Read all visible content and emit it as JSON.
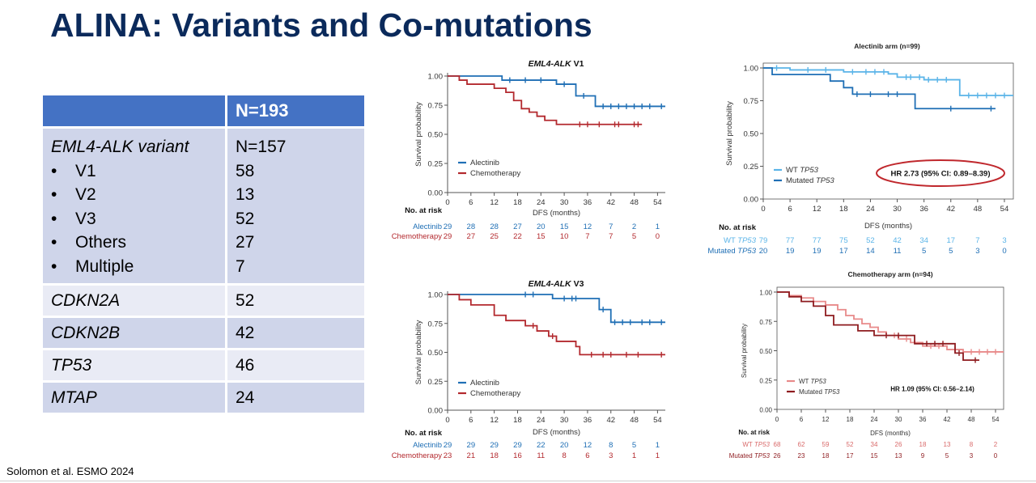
{
  "title": "ALINA: Variants and Co-mutations",
  "citation": "Solomon et al. ESMO 2024",
  "table": {
    "header": "N=193",
    "variant_label": "EML4-ALK variant",
    "variant_value": "N=157",
    "variants": [
      {
        "label": "V1",
        "value": "58"
      },
      {
        "label": "V2",
        "value": "13"
      },
      {
        "label": "V3",
        "value": "52"
      },
      {
        "label": "Others",
        "value": "27"
      },
      {
        "label": "Multiple",
        "value": "7"
      }
    ],
    "rows": [
      {
        "label": "CDKN2A",
        "value": "52"
      },
      {
        "label": "CDKN2B",
        "value": "42"
      },
      {
        "label": "TP53",
        "value": "46"
      },
      {
        "label": "MTAP",
        "value": "24"
      }
    ]
  },
  "colors": {
    "blue": "#1f6fb5",
    "red": "#b3292e",
    "light_blue": "#5ab4e8",
    "dark_red": "#8e1b1f",
    "light_red": "#e88a8a",
    "ellipse": "#c0282d"
  },
  "chart_data": [
    {
      "id": "v1",
      "type": "line",
      "title_italic": "EML4-ALK",
      "title_rest": " V1",
      "xlabel": "DFS (months)",
      "ylabel": "Survival probability",
      "xlim": [
        0,
        56
      ],
      "ylim": [
        0,
        1
      ],
      "xticks": [
        "0",
        "6",
        "12",
        "18",
        "24",
        "30",
        "36",
        "42",
        "48",
        "54"
      ],
      "yticks": [
        "0.00",
        "0.25",
        "0.50",
        "0.75",
        "1.00"
      ],
      "risk_title": "No. at risk",
      "series": [
        {
          "name": "Alectinib",
          "color": "#1f6fb5",
          "steps": [
            [
              0,
              1.0
            ],
            [
              14,
              0.965
            ],
            [
              28,
              0.93
            ],
            [
              33,
              0.83
            ],
            [
              38,
              0.74
            ],
            [
              56,
              0.74
            ]
          ],
          "censor": [
            16,
            20,
            24,
            30,
            35,
            40,
            42,
            44,
            46,
            48,
            50,
            52,
            55
          ],
          "risk_label": "Alectinib",
          "risk": [
            "29",
            "28",
            "28",
            "27",
            "20",
            "15",
            "12",
            "7",
            "2",
            "1"
          ]
        },
        {
          "name": "Chemotherapy",
          "color": "#b3292e",
          "steps": [
            [
              0,
              1.0
            ],
            [
              3,
              0.965
            ],
            [
              5,
              0.93
            ],
            [
              12,
              0.895
            ],
            [
              15,
              0.86
            ],
            [
              17,
              0.79
            ],
            [
              19,
              0.72
            ],
            [
              21,
              0.69
            ],
            [
              23,
              0.655
            ],
            [
              25,
              0.62
            ],
            [
              28,
              0.585
            ],
            [
              50,
              0.585
            ]
          ],
          "censor": [
            34,
            36,
            39,
            43,
            44,
            48,
            49
          ],
          "risk_label": "Chemotherapy",
          "risk": [
            "29",
            "27",
            "25",
            "22",
            "15",
            "10",
            "7",
            "7",
            "5",
            "0"
          ]
        }
      ]
    },
    {
      "id": "v3",
      "type": "line",
      "title_italic": "EML4-ALK",
      "title_rest": " V3",
      "xlabel": "DFS (months)",
      "ylabel": "Survival probability",
      "xlim": [
        0,
        56
      ],
      "ylim": [
        0,
        1
      ],
      "xticks": [
        "0",
        "6",
        "12",
        "18",
        "24",
        "30",
        "36",
        "42",
        "48",
        "54"
      ],
      "yticks": [
        "0.00",
        "0.25",
        "0.50",
        "0.75",
        "1.00"
      ],
      "risk_title": "No. at risk",
      "series": [
        {
          "name": "Alectinib",
          "color": "#1f6fb5",
          "steps": [
            [
              0,
              1.0
            ],
            [
              27,
              0.965
            ],
            [
              39,
              0.87
            ],
            [
              42,
              0.76
            ],
            [
              56,
              0.76
            ]
          ],
          "censor": [
            20,
            22,
            30,
            32,
            33,
            40,
            43,
            45,
            47,
            50,
            52,
            55
          ],
          "risk_label": "Alectinib",
          "risk": [
            "29",
            "29",
            "29",
            "29",
            "22",
            "20",
            "12",
            "8",
            "5",
            "1"
          ]
        },
        {
          "name": "Chemotherapy",
          "color": "#b3292e",
          "steps": [
            [
              0,
              1.0
            ],
            [
              3,
              0.955
            ],
            [
              6,
              0.91
            ],
            [
              12,
              0.82
            ],
            [
              15,
              0.775
            ],
            [
              20,
              0.73
            ],
            [
              23,
              0.685
            ],
            [
              26,
              0.64
            ],
            [
              28,
              0.595
            ],
            [
              33,
              0.55
            ],
            [
              34,
              0.48
            ],
            [
              56,
              0.48
            ]
          ],
          "censor": [
            22,
            27,
            37,
            40,
            42,
            46,
            49,
            55
          ],
          "risk_label": "Chemotherapy",
          "risk": [
            "23",
            "21",
            "18",
            "16",
            "11",
            "8",
            "6",
            "3",
            "1",
            "1"
          ]
        }
      ]
    },
    {
      "id": "alectinib_arm",
      "type": "line",
      "title": "Alectinib arm (n=99)",
      "xlabel": "DFS (months)",
      "ylabel": "Survival probability",
      "xlim": [
        0,
        56
      ],
      "ylim": [
        0,
        1
      ],
      "xticks": [
        "0",
        "6",
        "12",
        "18",
        "24",
        "30",
        "36",
        "42",
        "48",
        "54"
      ],
      "yticks": [
        "0.00",
        "0.25",
        "0.50",
        "0.75",
        "1.00"
      ],
      "annotation": "HR 2.73 (95% CI: 0.89–8.39)",
      "risk_title": "No. at risk",
      "series": [
        {
          "name": "WT TP53",
          "legend_plain": "WT ",
          "legend_italic": "TP53",
          "color": "#5ab4e8",
          "steps": [
            [
              0,
              1.0
            ],
            [
              6,
              0.985
            ],
            [
              18,
              0.97
            ],
            [
              28,
              0.955
            ],
            [
              30,
              0.93
            ],
            [
              36,
              0.91
            ],
            [
              44,
              0.79
            ],
            [
              56,
              0.79
            ]
          ],
          "censor": [
            3,
            10,
            14,
            20,
            23,
            25,
            27,
            32,
            33,
            35,
            37,
            39,
            41,
            46,
            48,
            50,
            52,
            54
          ],
          "risk_label_plain": "WT ",
          "risk_label_italic": "TP53",
          "risk": [
            "79",
            "77",
            "77",
            "75",
            "52",
            "42",
            "34",
            "17",
            "7",
            "3"
          ]
        },
        {
          "name": "Mutated TP53",
          "legend_plain": "Mutated ",
          "legend_italic": "TP53",
          "color": "#1f6fb5",
          "steps": [
            [
              0,
              1.0
            ],
            [
              2,
              0.95
            ],
            [
              15,
              0.9
            ],
            [
              18,
              0.85
            ],
            [
              20,
              0.8
            ],
            [
              34,
              0.69
            ],
            [
              52,
              0.69
            ]
          ],
          "censor": [
            21,
            24,
            28,
            30,
            42,
            51
          ],
          "risk_label_plain": "Mutated ",
          "risk_label_italic": "TP53",
          "risk": [
            "20",
            "19",
            "19",
            "17",
            "14",
            "11",
            "5",
            "5",
            "3",
            "0"
          ]
        }
      ]
    },
    {
      "id": "chemotherapy_arm",
      "type": "line",
      "title": "Chemotherapy arm (n=94)",
      "xlabel": "DFS (months)",
      "ylabel": "Survival probability",
      "xlim": [
        0,
        56
      ],
      "ylim": [
        0,
        1
      ],
      "xticks": [
        "0",
        "6",
        "12",
        "18",
        "24",
        "30",
        "36",
        "42",
        "48",
        "54"
      ],
      "yticks": [
        "0.00",
        "0.25",
        "0.50",
        "0.75",
        "1.00"
      ],
      "annotation": "HR 1.09 (95% CI: 0.56–2.14)",
      "risk_title": "No. at risk",
      "series": [
        {
          "name": "WT TP53",
          "legend_plain": "WT ",
          "legend_italic": "TP53",
          "color": "#e88a8a",
          "steps": [
            [
              0,
              1.0
            ],
            [
              3,
              0.97
            ],
            [
              6,
              0.95
            ],
            [
              9,
              0.92
            ],
            [
              12,
              0.89
            ],
            [
              15,
              0.85
            ],
            [
              17,
              0.8
            ],
            [
              19,
              0.77
            ],
            [
              21,
              0.73
            ],
            [
              23,
              0.7
            ],
            [
              25,
              0.66
            ],
            [
              27,
              0.63
            ],
            [
              30,
              0.6
            ],
            [
              33,
              0.57
            ],
            [
              36,
              0.54
            ],
            [
              42,
              0.51
            ],
            [
              46,
              0.49
            ],
            [
              56,
              0.49
            ]
          ],
          "censor": [
            29,
            32,
            38,
            40,
            44,
            48,
            50,
            52,
            54
          ],
          "risk_label_plain": "WT ",
          "risk_label_italic": "TP53",
          "risk": [
            "68",
            "62",
            "59",
            "52",
            "34",
            "26",
            "18",
            "13",
            "8",
            "2"
          ]
        },
        {
          "name": "Mutated TP53",
          "legend_plain": "Mutated ",
          "legend_italic": "TP53",
          "color": "#8e1b1f",
          "steps": [
            [
              0,
              1.0
            ],
            [
              3,
              0.96
            ],
            [
              6,
              0.92
            ],
            [
              9,
              0.88
            ],
            [
              12,
              0.8
            ],
            [
              14,
              0.72
            ],
            [
              20,
              0.67
            ],
            [
              24,
              0.63
            ],
            [
              34,
              0.56
            ],
            [
              44,
              0.48
            ],
            [
              46,
              0.42
            ],
            [
              50,
              0.42
            ]
          ],
          "censor": [
            27,
            30,
            37,
            39,
            41,
            45,
            49
          ],
          "risk_label_plain": "Mutated ",
          "risk_label_italic": "TP53",
          "risk": [
            "26",
            "23",
            "18",
            "17",
            "15",
            "13",
            "9",
            "5",
            "3",
            "0"
          ]
        }
      ]
    }
  ]
}
